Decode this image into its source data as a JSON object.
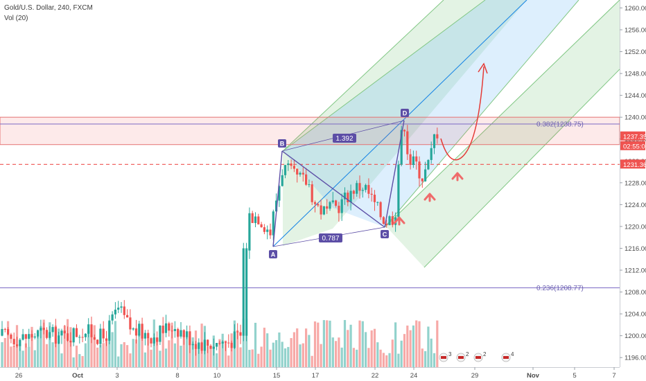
{
  "header": {
    "symbol_line": "Gold/U.S. Dollar, 240, FXCM",
    "indicator_line": "Vol (20)"
  },
  "chart_data": {
    "type": "candlestick",
    "symbol": "Gold/U.S. Dollar",
    "interval": "240",
    "source": "FXCM",
    "indicator": "Vol (20)",
    "y_axis": {
      "ticks": [
        1196.0,
        1200.0,
        1204.0,
        1208.0,
        1212.0,
        1216.0,
        1220.0,
        1224.0,
        1228.0,
        1232.0,
        1236.0,
        1240.0,
        1244.0,
        1248.0,
        1252.0,
        1256.0,
        1260.0
      ],
      "range": [
        1194.5,
        1261.2
      ]
    },
    "x_axis": {
      "tick_labels": [
        "26",
        "Oct",
        "3",
        "8",
        "10",
        "15",
        "17",
        "22",
        "24",
        "29",
        "Nov",
        "5",
        "7"
      ]
    },
    "price_tags": [
      {
        "value": "1237.39",
        "color": "#ef5350"
      },
      {
        "value": "02:55:01",
        "color": "#ef5350"
      },
      {
        "value": "1231.36",
        "color": "#ef5350"
      }
    ],
    "fib_levels": [
      {
        "label": "0.382(1238.75)",
        "value": 1238.75
      },
      {
        "label": "0.236(1208.77)",
        "value": 1208.77
      }
    ],
    "pattern": {
      "points": [
        {
          "label": "A",
          "price": 1216.0
        },
        {
          "label": "B",
          "price": 1233.5
        },
        {
          "label": "C",
          "price": 1219.5
        },
        {
          "label": "D",
          "price": 1240.0
        }
      ],
      "ratios": [
        "1.392",
        "0.787"
      ]
    },
    "resistance_zone": [
      1236.0,
      1240.0
    ],
    "support_line": 1231.36,
    "event_badges": [
      "3",
      "2",
      "2",
      "4"
    ],
    "colors": {
      "up": "#26a69a",
      "down": "#ef5350",
      "pattern": "#5c4ea6",
      "fib": "#7b68c4",
      "projection": "#e53935"
    }
  }
}
